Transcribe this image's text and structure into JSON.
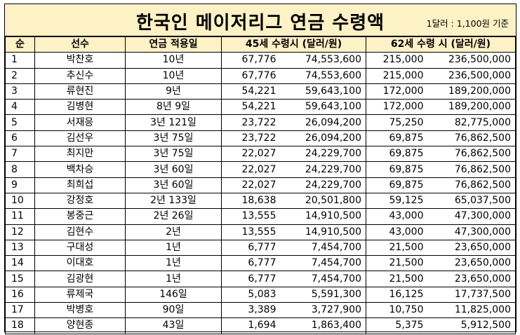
{
  "title": "한국인 메이저리그 연금 수령액",
  "note": "1달러 : 1,100원 기준",
  "headers": {
    "idx": "순",
    "player": "선수",
    "period": "연금 적용일",
    "at45": "45세 수령시 (달러/원)",
    "at62": "62세 수령 시 (달러/원)"
  },
  "rows": [
    {
      "idx": "1",
      "player": "박찬호",
      "period": "10년",
      "usd45": "67,776",
      "krw45": "74,553,600",
      "usd62": "215,000",
      "krw62": "236,500,000"
    },
    {
      "idx": "2",
      "player": "추신수",
      "period": "10년",
      "usd45": "67,776",
      "krw45": "74,553,600",
      "usd62": "215,000",
      "krw62": "236,500,000"
    },
    {
      "idx": "3",
      "player": "류현진",
      "period": "9년",
      "usd45": "54,221",
      "krw45": "59,643,100",
      "usd62": "172,000",
      "krw62": "189,200,000"
    },
    {
      "idx": "4",
      "player": "김병현",
      "period": "8년 9일",
      "usd45": "54,221",
      "krw45": "59,643,100",
      "usd62": "172,000",
      "krw62": "189,200,000"
    },
    {
      "idx": "5",
      "player": "서재응",
      "period": "3년 121일",
      "usd45": "23,722",
      "krw45": "26,094,200",
      "usd62": "75,250",
      "krw62": "82,775,000"
    },
    {
      "idx": "6",
      "player": "김선우",
      "period": "3년 75일",
      "usd45": "23,722",
      "krw45": "26,094,200",
      "usd62": "69,875",
      "krw62": "76,862,500"
    },
    {
      "idx": "7",
      "player": "최지만",
      "period": "3년 75일",
      "usd45": "22,027",
      "krw45": "24,229,700",
      "usd62": "69,875",
      "krw62": "76,862,500"
    },
    {
      "idx": "8",
      "player": "백차승",
      "period": "3년 60일",
      "usd45": "22,027",
      "krw45": "24,229,700",
      "usd62": "69,875",
      "krw62": "76,862,500"
    },
    {
      "idx": "9",
      "player": "최희섭",
      "period": "3년 60일",
      "usd45": "22,027",
      "krw45": "24,229,700",
      "usd62": "69,875",
      "krw62": "76,862,500"
    },
    {
      "idx": "10",
      "player": "강정호",
      "period": "2년 133일",
      "usd45": "18,638",
      "krw45": "20,501,800",
      "usd62": "59,125",
      "krw62": "65,037,500"
    },
    {
      "idx": "11",
      "player": "봉중근",
      "period": "2년 26일",
      "usd45": "13,555",
      "krw45": "14,910,500",
      "usd62": "43,000",
      "krw62": "47,300,000"
    },
    {
      "idx": "12",
      "player": "김현수",
      "period": "2년",
      "usd45": "13,555",
      "krw45": "14,910,500",
      "usd62": "43,000",
      "krw62": "47,300,000"
    },
    {
      "idx": "13",
      "player": "구대성",
      "period": "1년",
      "usd45": "6,777",
      "krw45": "7,454,700",
      "usd62": "21,500",
      "krw62": "23,650,000"
    },
    {
      "idx": "14",
      "player": "이대호",
      "period": "1년",
      "usd45": "6,777",
      "krw45": "7,454,700",
      "usd62": "21,500",
      "krw62": "23,650,000"
    },
    {
      "idx": "15",
      "player": "김광현",
      "period": "1년",
      "usd45": "6,777",
      "krw45": "7,454,700",
      "usd62": "21,500",
      "krw62": "23,650,000"
    },
    {
      "idx": "16",
      "player": "류제국",
      "period": "146일",
      "usd45": "5,083",
      "krw45": "5,591,300",
      "usd62": "16,125",
      "krw62": "17,737,500"
    },
    {
      "idx": "17",
      "player": "박병호",
      "period": "90일",
      "usd45": "3,389",
      "krw45": "3,727,900",
      "usd62": "10,750",
      "krw62": "11,825,000"
    },
    {
      "idx": "18",
      "player": "양현종",
      "period": "43일",
      "usd45": "1,694",
      "krw45": "1,863,400",
      "usd62": "5,375",
      "krw62": "5,912,500"
    }
  ]
}
